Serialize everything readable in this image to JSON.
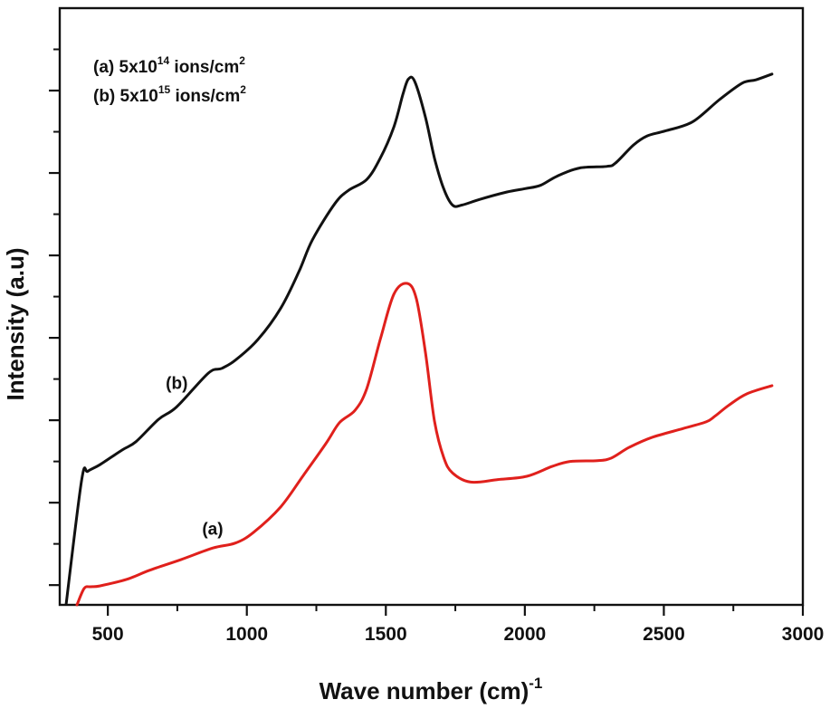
{
  "chart_data": {
    "type": "line",
    "title": "",
    "xlabel": "Wave number (cm)",
    "xlabel_superscript": "-1",
    "ylabel": "Intensity (a.u)",
    "xlim": [
      327,
      3000
    ],
    "ylim": [
      0,
      7.24
    ],
    "x_ticks": [
      500,
      1000,
      1500,
      2000,
      2500,
      3000
    ],
    "x_tick_labels": [
      "500",
      "1000",
      "1500",
      "2000",
      "2500",
      "3000"
    ],
    "x_minor_ticks": [
      750,
      1250,
      1750,
      2250,
      2750
    ],
    "y_ticks": [
      0.24,
      1.24,
      2.24,
      3.24,
      4.24,
      5.24,
      6.24
    ],
    "y_minor_ticks": [
      0.74,
      1.74,
      2.74,
      3.74,
      4.74,
      5.74,
      6.74
    ],
    "y_tick_labels_shown": false,
    "grid": false,
    "legend": {
      "placement": "top-left",
      "entries": [
        {
          "prefix": "(a) 5x10",
          "exp": "14",
          "suffix": " ions/cm",
          "suffix_exp": "2"
        },
        {
          "prefix": "(b) 5x10",
          "exp": "15",
          "suffix": " ions/cm",
          "suffix_exp": "2"
        }
      ]
    },
    "series": [
      {
        "name": "(a) 5x10^14 ions/cm^2",
        "label": "(a)",
        "color": "#e0201c",
        "x": [
          389,
          415,
          438,
          471,
          568,
          650,
          764,
          878,
          959,
          1024,
          1122,
          1203,
          1285,
          1333,
          1389,
          1431,
          1480,
          1529,
          1577,
          1610,
          1643,
          1675,
          1708,
          1740,
          1805,
          1903,
          2007,
          2098,
          2163,
          2261,
          2310,
          2375,
          2456,
          2570,
          2652,
          2684,
          2733,
          2798,
          2889
        ],
        "y": [
          0.0,
          0.2,
          0.22,
          0.23,
          0.31,
          0.42,
          0.55,
          0.69,
          0.75,
          0.88,
          1.19,
          1.57,
          1.96,
          2.21,
          2.36,
          2.62,
          3.22,
          3.77,
          3.9,
          3.71,
          3.05,
          2.23,
          1.79,
          1.6,
          1.49,
          1.52,
          1.56,
          1.68,
          1.74,
          1.75,
          1.78,
          1.91,
          2.03,
          2.14,
          2.22,
          2.29,
          2.42,
          2.56,
          2.66
        ],
        "label_at": [
          877,
          0.85
        ]
      },
      {
        "name": "(b) 5x10^15 ions/cm^2",
        "label": "(b)",
        "color": "#111111",
        "x": [
          350,
          406,
          428,
          471,
          552,
          601,
          682,
          747,
          861,
          910,
          959,
          1040,
          1122,
          1187,
          1236,
          1317,
          1366,
          1431,
          1480,
          1529,
          1561,
          1581,
          1604,
          1643,
          1675,
          1708,
          1740,
          1773,
          1838,
          1936,
          2001,
          2056,
          2115,
          2196,
          2294,
          2326,
          2391,
          2440,
          2505,
          2603,
          2700,
          2782,
          2831,
          2889
        ],
        "y": [
          0.01,
          1.52,
          1.62,
          1.7,
          1.88,
          1.98,
          2.25,
          2.4,
          2.81,
          2.87,
          2.97,
          3.22,
          3.6,
          4.04,
          4.43,
          4.87,
          5.03,
          5.16,
          5.42,
          5.8,
          6.19,
          6.38,
          6.35,
          5.91,
          5.42,
          5.05,
          4.85,
          4.85,
          4.92,
          5.01,
          5.05,
          5.09,
          5.2,
          5.3,
          5.32,
          5.36,
          5.58,
          5.69,
          5.75,
          5.86,
          6.13,
          6.33,
          6.37,
          6.44
        ],
        "label_at": [
          748,
          2.62
        ]
      }
    ]
  }
}
